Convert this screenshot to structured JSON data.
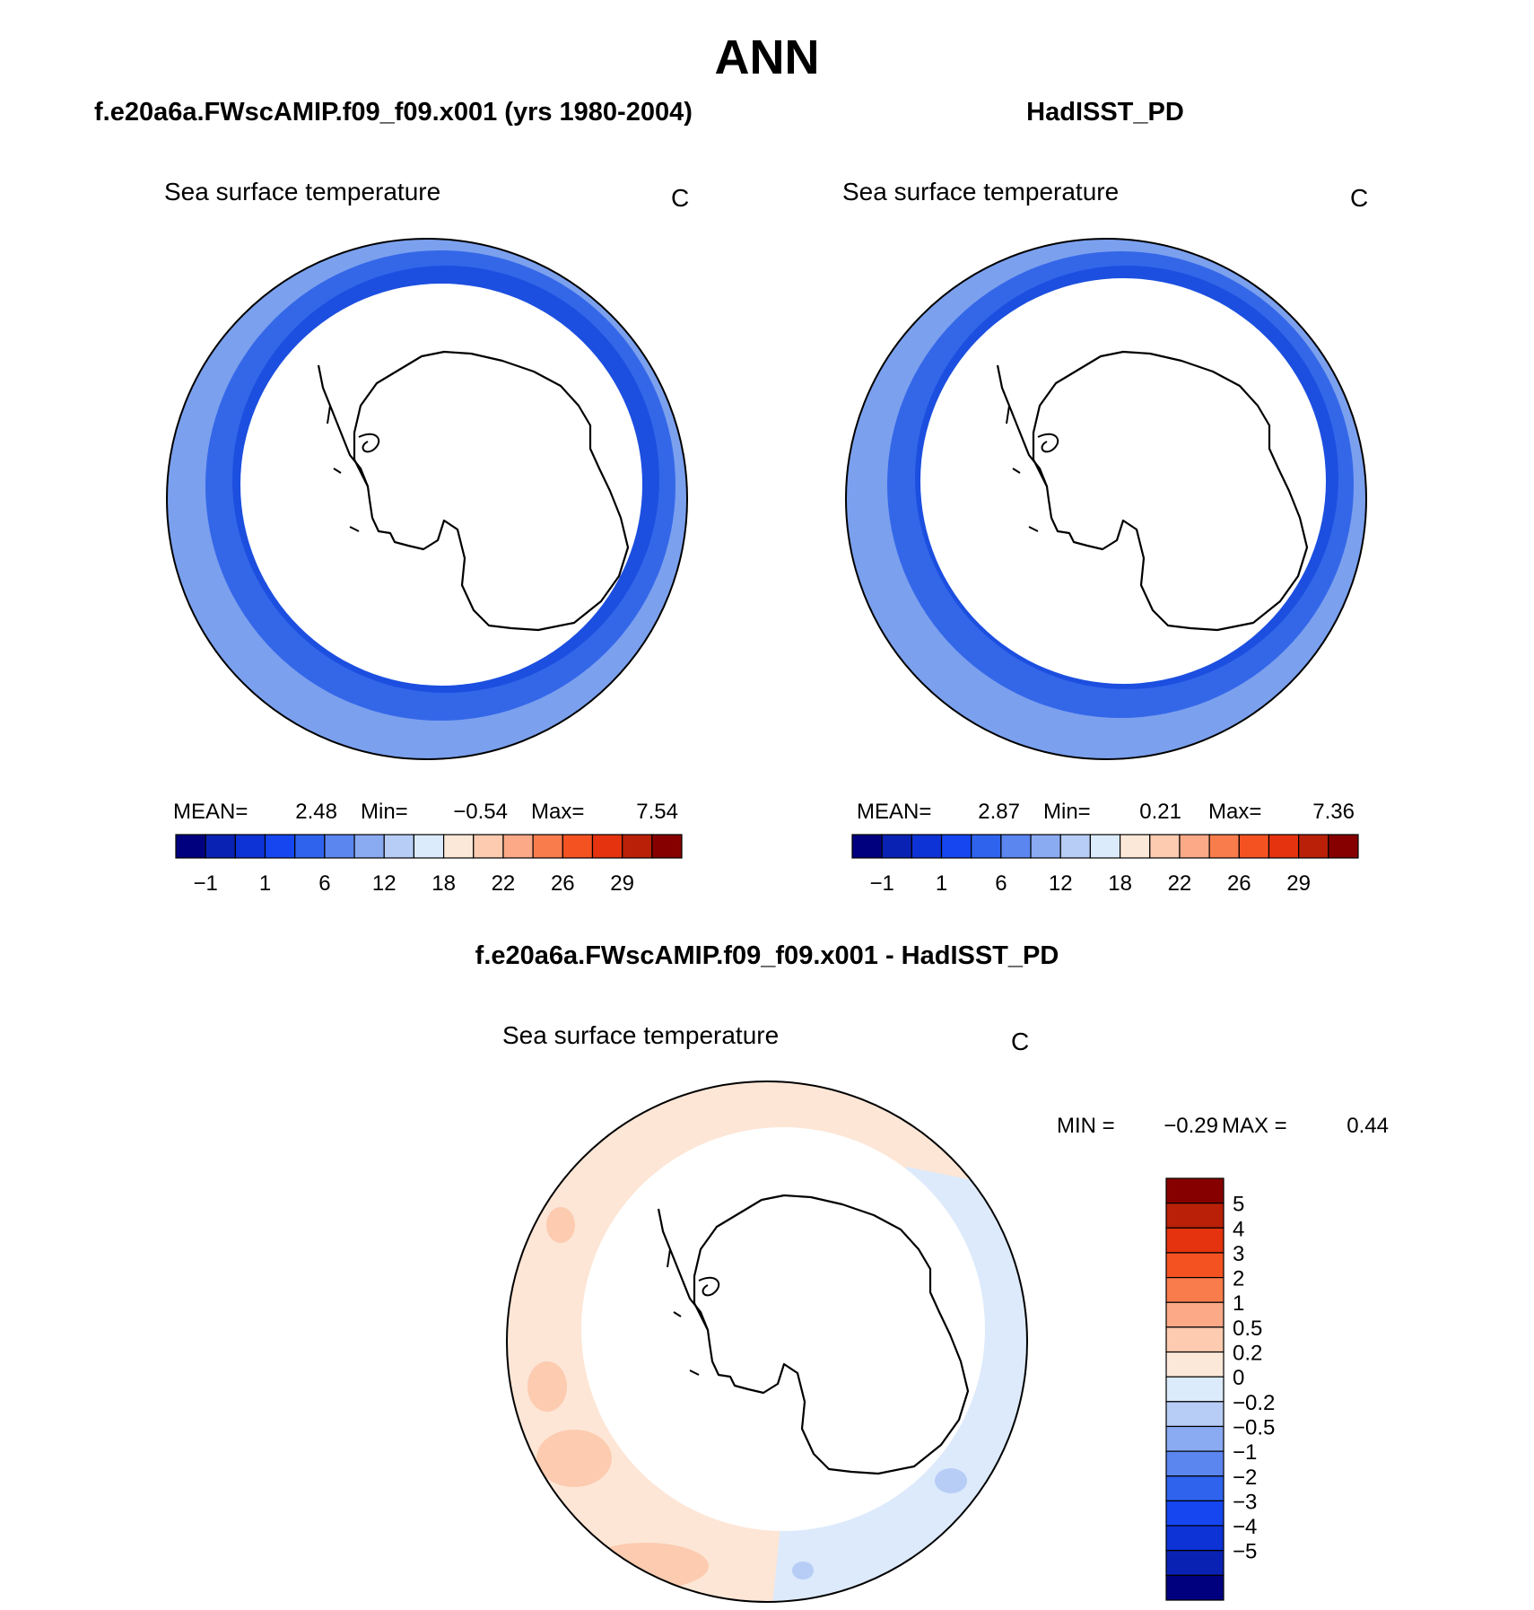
{
  "title": "ANN",
  "colors": {
    "sst_scale": [
      "#00007f",
      "#0a22b4",
      "#0d33d6",
      "#1546f0",
      "#2f63ee",
      "#5b85ef",
      "#8aaaf2",
      "#b7cdf6",
      "#dcebfb",
      "#fce8d8",
      "#fccbb0",
      "#fba986",
      "#f97c4c",
      "#f55222",
      "#e4330e",
      "#ba2008",
      "#870000"
    ],
    "diff_scale": [
      "#00007f",
      "#0a22b4",
      "#0d33d6",
      "#1546f0",
      "#2f63ee",
      "#5b85ef",
      "#8aaaf2",
      "#b7cdf6",
      "#dcebfb",
      "#fce8d8",
      "#fccbb0",
      "#fba986",
      "#f97c4c",
      "#f55222",
      "#e4330e",
      "#ba2008",
      "#870000"
    ],
    "land_fill": "#ffffff",
    "coastline": "#000000"
  },
  "chart_data": [
    {
      "type": "heatmap",
      "projection": "south polar stereographic",
      "panel_title": "f.e20a6a.FWscAMIP.f09_f09.x001 (yrs 1980-2004)",
      "variable_label": "Sea surface temperature",
      "units_label": "C",
      "stats": {
        "mean_label": "MEAN=",
        "mean": "2.48",
        "min_label": "Min=",
        "min": "−0.54",
        "max_label": "Max=",
        "max": "7.54"
      },
      "colorbar_tick_labels": [
        "−1",
        "1",
        "6",
        "12",
        "18",
        "22",
        "26",
        "29"
      ]
    },
    {
      "type": "heatmap",
      "projection": "south polar stereographic",
      "panel_title": "HadISST_PD",
      "variable_label": "Sea surface temperature",
      "units_label": "C",
      "stats": {
        "mean_label": "MEAN=",
        "mean": "2.87",
        "min_label": "Min=",
        "min": "0.21",
        "max_label": "Max=",
        "max": "7.36"
      },
      "colorbar_tick_labels": [
        "−1",
        "1",
        "6",
        "12",
        "18",
        "22",
        "26",
        "29"
      ]
    },
    {
      "type": "heatmap",
      "projection": "south polar stereographic",
      "panel_title": "f.e20a6a.FWscAMIP.f09_f09.x001 - HadISST_PD",
      "variable_label": "Sea surface temperature",
      "units_label": "C",
      "stats": {
        "min_label": "MIN =",
        "min": "−0.29",
        "max_label": "MAX =",
        "max": "0.44"
      },
      "colorbar_tick_labels": [
        "5",
        "4",
        "3",
        "2",
        "1",
        "0.5",
        "0.2",
        "0",
        "−0.2",
        "−0.5",
        "−1",
        "−2",
        "−3",
        "−4",
        "−5"
      ]
    }
  ]
}
